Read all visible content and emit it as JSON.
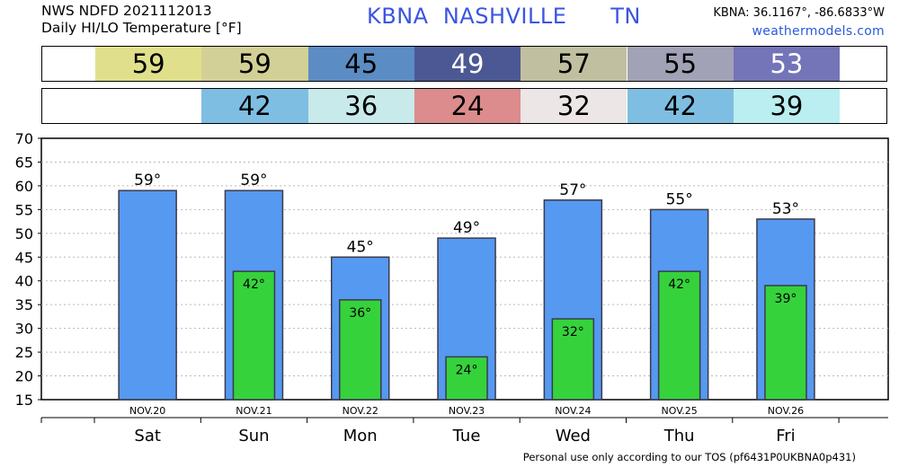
{
  "header": {
    "line1": "NWS NDFD 2021112013",
    "line2": "Daily HI/LO Temperature [°F]",
    "station": "KBNA",
    "city": "NASHVILLE",
    "state": "TN",
    "coords": "KBNA: 36.1167°, -86.6833°W",
    "site": "weathermodels.com"
  },
  "footer": "Personal use only according to our TOS (pf6431P0UKBNA0p431)",
  "highs_row": [
    {
      "value": "59",
      "color": "#e0e08c"
    },
    {
      "value": "59",
      "color": "#d2d096"
    },
    {
      "value": "45",
      "color": "#5c8cc4"
    },
    {
      "value": "49",
      "color": "#4c5894"
    },
    {
      "value": "57",
      "color": "#c0c0a0"
    },
    {
      "value": "55",
      "color": "#a2a2b6"
    },
    {
      "value": "53",
      "color": "#7474b8"
    }
  ],
  "lows_row": [
    {
      "value": "42",
      "color": "#7ebee2"
    },
    {
      "value": "36",
      "color": "#c8eaea"
    },
    {
      "value": "24",
      "color": "#dc8c8c"
    },
    {
      "value": "32",
      "color": "#ece6e6"
    },
    {
      "value": "42",
      "color": "#7ebee2"
    },
    {
      "value": "39",
      "color": "#baeef0"
    }
  ],
  "chart_data": {
    "type": "bar",
    "categories": [
      "Sat",
      "Sun",
      "Mon",
      "Tue",
      "Wed",
      "Thu",
      "Fri"
    ],
    "dates": [
      "NOV.20",
      "NOV.21",
      "NOV.22",
      "NOV.23",
      "NOV.24",
      "NOV.25",
      "NOV.26"
    ],
    "series": [
      {
        "values": [
          59,
          59,
          45,
          49,
          57,
          55,
          53
        ],
        "color": "#5599f0"
      },
      {
        "values": [
          null,
          42,
          36,
          24,
          32,
          42,
          39
        ],
        "color": "#36d23c"
      }
    ],
    "high_labels": [
      "59°",
      "59°",
      "45°",
      "49°",
      "57°",
      "55°",
      "53°"
    ],
    "low_labels": [
      "",
      "42°",
      "36°",
      "24°",
      "32°",
      "42°",
      "39°"
    ],
    "yticks": [
      "70",
      "65",
      "60",
      "55",
      "50",
      "45",
      "40",
      "35",
      "30",
      "25",
      "20",
      "15"
    ],
    "ylim": [
      15,
      70
    ],
    "grid": true
  }
}
